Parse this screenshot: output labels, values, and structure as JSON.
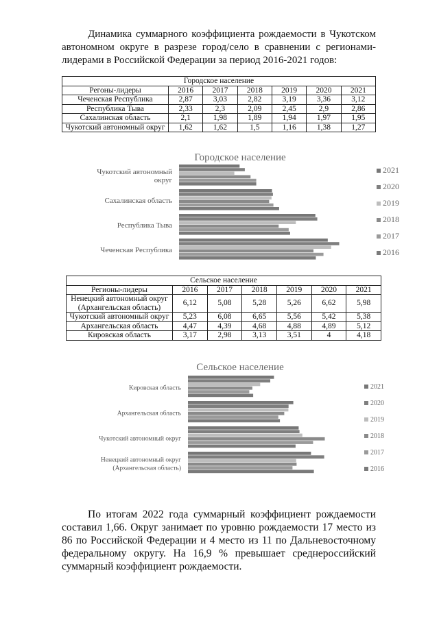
{
  "intro": "Динамика суммарного коэффициента рождаемости в Чукотском автономном округе в разрезе город/село в сравнении с регионами-лидерами в Российской Федерации за период 2016-2021 годов:",
  "urban_table": {
    "caption": "Городское население",
    "headers": [
      "Регоны-лидеры",
      "2016",
      "2017",
      "2018",
      "2019",
      "2020",
      "2021"
    ],
    "rows": [
      [
        "Чеченская Республика",
        "2,87",
        "3,03",
        "2,82",
        "3,19",
        "3,36",
        "3,12"
      ],
      [
        "Республика Тыва",
        "2,33",
        "2,3",
        "2,09",
        "2,45",
        "2,9",
        "2,86"
      ],
      [
        "Сахалинская область",
        "2,1",
        "1,98",
        "1,89",
        "1,94",
        "1,97",
        "1,95"
      ],
      [
        "Чукотский автономный округ",
        "1,62",
        "1,62",
        "1,5",
        "1,16",
        "1,38",
        "1,27"
      ]
    ]
  },
  "rural_table": {
    "caption": "Сельское население",
    "headers": [
      "Регионы-лидеры",
      "2016",
      "2017",
      "2018",
      "2019",
      "2020",
      "2021"
    ],
    "rows": [
      [
        "Ненецкий автономный округ (Архангельская область)",
        "6,12",
        "5,08",
        "5,28",
        "5,26",
        "6,62",
        "5,98"
      ],
      [
        "Чукотский автономный округ",
        "5,23",
        "6,08",
        "6,65",
        "5,56",
        "5,42",
        "5,38"
      ],
      [
        "Архангельская область",
        "4,47",
        "4,39",
        "4,68",
        "4,88",
        "4,89",
        "5,12"
      ],
      [
        "Кировская область",
        "3,17",
        "2,98",
        "3,13",
        "3,51",
        "4",
        "4,18"
      ]
    ]
  },
  "chart_data": [
    {
      "type": "bar",
      "orientation": "horizontal",
      "title": "Городское население",
      "categories": [
        "Чеченская Республика",
        "Республика Тыва",
        "Сахалинская область",
        "Чукотский автономный округ"
      ],
      "series": [
        {
          "name": "2016",
          "values": [
            2.87,
            2.33,
            2.1,
            1.62
          ]
        },
        {
          "name": "2017",
          "values": [
            3.03,
            2.3,
            1.98,
            1.62
          ]
        },
        {
          "name": "2018",
          "values": [
            2.82,
            2.09,
            1.89,
            1.5
          ]
        },
        {
          "name": "2019",
          "values": [
            3.19,
            2.45,
            1.94,
            1.16
          ]
        },
        {
          "name": "2020",
          "values": [
            3.36,
            2.9,
            1.97,
            1.38
          ]
        },
        {
          "name": "2021",
          "values": [
            3.12,
            2.86,
            1.95,
            1.27
          ]
        }
      ],
      "legend": "right",
      "grid": false,
      "colors": [
        "#7a7a7a",
        "#9a9a9a",
        "#8a8a8a",
        "#bdbdbd",
        "#7f7f7f",
        "#777777"
      ]
    },
    {
      "type": "bar",
      "orientation": "horizontal",
      "title": "Сельское население",
      "categories": [
        "Ненецкий автономный округ (Архангельская область)",
        "Чукотский автономный округ",
        "Архангельская область",
        "Кировская область"
      ],
      "series": [
        {
          "name": "2016",
          "values": [
            6.12,
            5.23,
            4.47,
            3.17
          ]
        },
        {
          "name": "2017",
          "values": [
            5.08,
            6.08,
            4.39,
            2.98
          ]
        },
        {
          "name": "2018",
          "values": [
            5.28,
            6.65,
            4.68,
            3.13
          ]
        },
        {
          "name": "2019",
          "values": [
            5.26,
            5.56,
            4.88,
            3.51
          ]
        },
        {
          "name": "2020",
          "values": [
            6.62,
            5.42,
            4.89,
            4
          ]
        },
        {
          "name": "2021",
          "values": [
            5.98,
            5.38,
            5.12,
            4.18
          ]
        }
      ],
      "legend": "right",
      "grid": false,
      "colors": [
        "#7a7a7a",
        "#9a9a9a",
        "#8a8a8a",
        "#bdbdbd",
        "#7f7f7f",
        "#777777"
      ]
    }
  ],
  "conclusion": "По итогам 2022 года суммарный коэффициент рождаемости составил 1,66. Округ занимает по уровню рождаемости 17 место из 86 по Российской Федерации и 4 место из 11 по Дальневосточному федеральному округу. На 16,9 % превышает среднероссийский суммарный коэффициент рождаемости."
}
